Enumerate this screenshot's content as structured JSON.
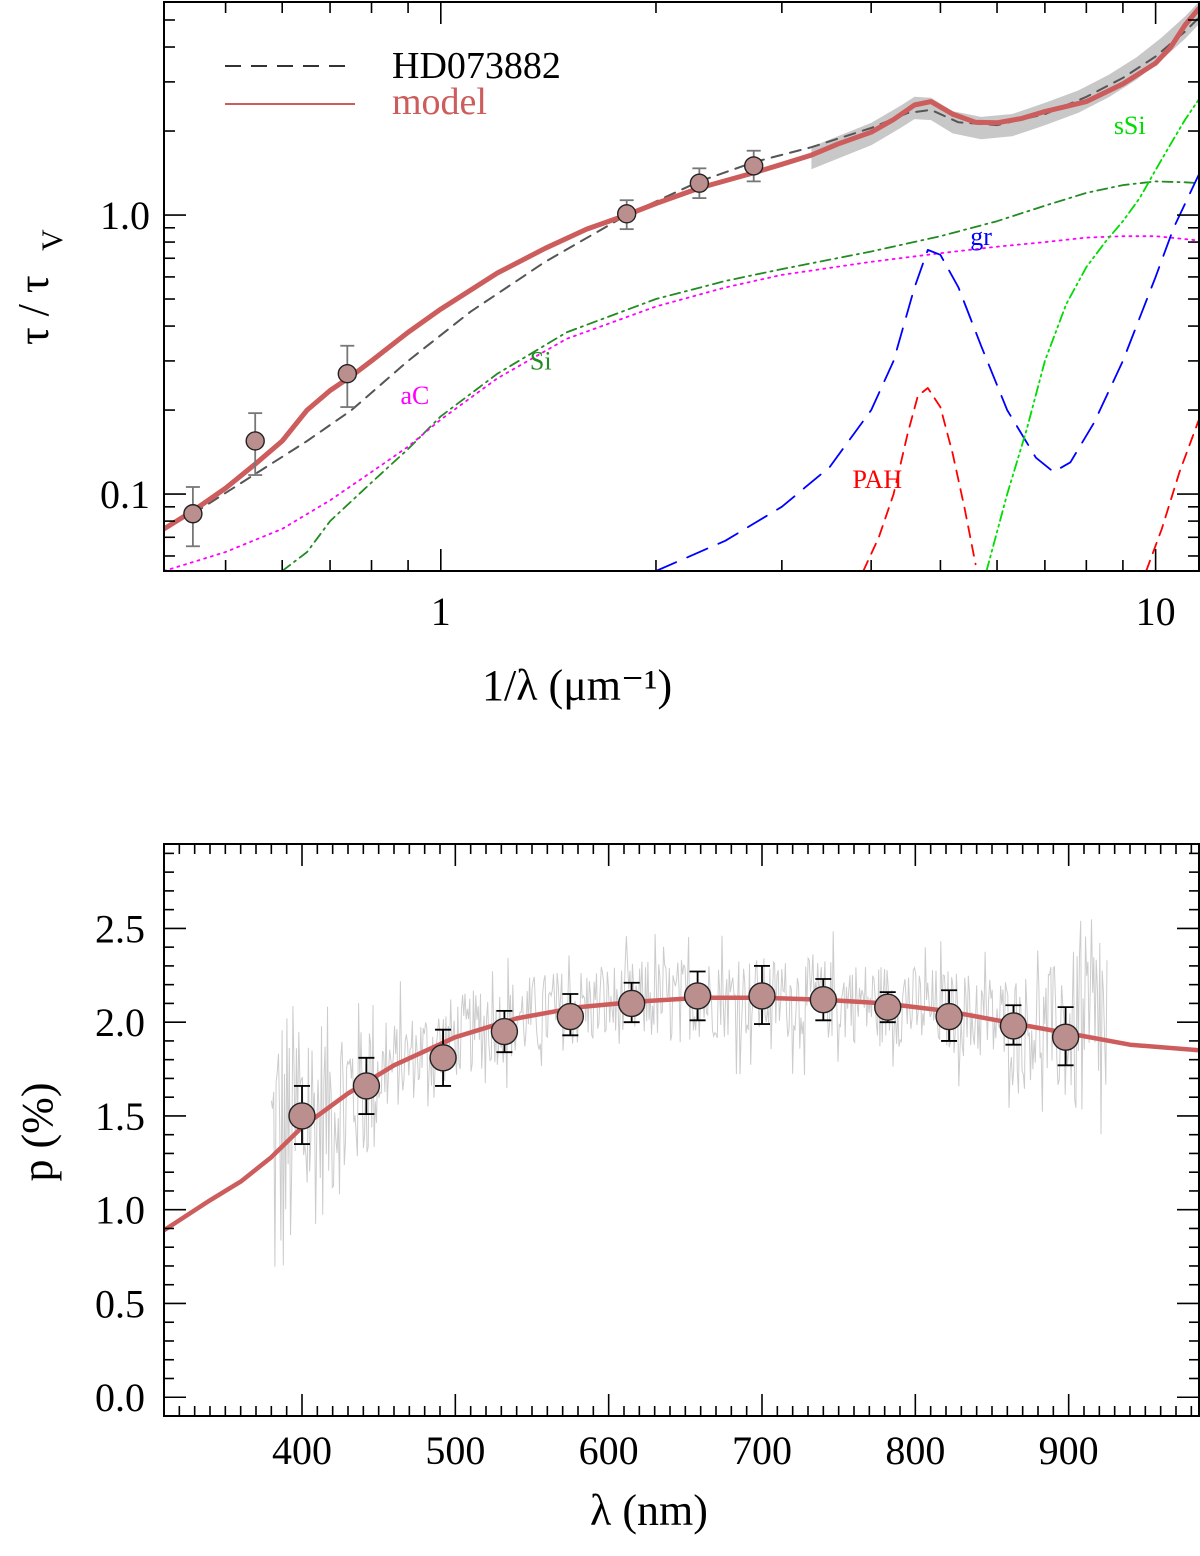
{
  "chart_data": [
    {
      "type": "line",
      "scale": {
        "x": "log",
        "y": "log"
      },
      "title": "",
      "xlabel": "1/λ (μm⁻¹)",
      "ylabel_main": "τ / τ",
      "ylabel_sub": "V",
      "xlim": [
        0.41,
        11.5
      ],
      "ylim": [
        0.053,
        5.8
      ],
      "x_ticks": [
        {
          "value": 1,
          "label": "1"
        },
        {
          "value": 10,
          "label": "10"
        }
      ],
      "y_ticks": [
        {
          "value": 0.1,
          "label": "0.1"
        },
        {
          "value": 1.0,
          "label": "1.0"
        }
      ],
      "legend": {
        "position": "top-left",
        "entries": [
          {
            "label": "HD073882",
            "style": "dashed",
            "color": "#000000",
            "line_color": "#333333"
          },
          {
            "label": "model",
            "style": "solid",
            "color": "#cd5c5c",
            "line_color": "#cd5c5c"
          }
        ]
      },
      "observed_band": {
        "name": "HD073882 UV data band",
        "color": "#c8c8c8",
        "x": [
          3.3,
          3.6,
          4.0,
          4.4,
          4.6,
          4.85,
          5.2,
          5.7,
          6.3,
          7.0,
          7.8,
          8.6,
          9.4,
          10.2,
          11.0,
          11.5
        ],
        "y": [
          1.6,
          1.75,
          1.95,
          2.25,
          2.42,
          2.4,
          2.15,
          2.05,
          2.1,
          2.3,
          2.55,
          2.9,
          3.35,
          3.95,
          4.7,
          5.3
        ],
        "halfwidth_dex": 0.04
      },
      "series": [
        {
          "name": "HD073882",
          "style": "dashed",
          "color": "#555555",
          "x": [
            0.45,
            0.55,
            0.65,
            0.75,
            0.9,
            1.1,
            1.4,
            1.82,
            2.3,
            2.75,
            3.3,
            4.0,
            4.5,
            4.85,
            5.3,
            6.0,
            7.0,
            8.0,
            9.0,
            10.0,
            11.0,
            11.5
          ],
          "y": [
            0.085,
            0.118,
            0.155,
            0.2,
            0.3,
            0.45,
            0.68,
            1.0,
            1.32,
            1.55,
            1.75,
            2.05,
            2.32,
            2.38,
            2.15,
            2.1,
            2.3,
            2.65,
            3.1,
            3.7,
            4.55,
            5.1
          ]
        },
        {
          "name": "model",
          "style": "solid",
          "color": "#cd5c5c",
          "x": [
            0.41,
            0.45,
            0.5,
            0.55,
            0.6,
            0.65,
            0.7,
            0.75,
            0.8,
            0.9,
            1.0,
            1.2,
            1.4,
            1.6,
            1.82,
            2.0,
            2.3,
            2.75,
            3.0,
            3.3,
            3.6,
            4.0,
            4.3,
            4.6,
            4.85,
            5.2,
            5.6,
            6.0,
            6.5,
            7.0,
            7.5,
            8.0,
            9.0,
            10.0,
            10.5,
            11.0,
            11.5
          ],
          "y": [
            0.075,
            0.087,
            0.105,
            0.128,
            0.155,
            0.2,
            0.235,
            0.265,
            0.3,
            0.38,
            0.46,
            0.62,
            0.76,
            0.89,
            1.0,
            1.1,
            1.25,
            1.42,
            1.52,
            1.64,
            1.8,
            1.98,
            2.2,
            2.48,
            2.55,
            2.3,
            2.15,
            2.14,
            2.22,
            2.35,
            2.45,
            2.55,
            2.95,
            3.5,
            4.0,
            4.8,
            5.5
          ]
        },
        {
          "name": "Si",
          "style": "dashdot",
          "color": "#228b22",
          "x": [
            0.6,
            0.65,
            0.7,
            0.8,
            0.9,
            1.0,
            1.2,
            1.5,
            2.0,
            2.5,
            3.0,
            4.0,
            5.0,
            6.0,
            7.0,
            8.0,
            9.0,
            10.0,
            11.0,
            11.5
          ],
          "y": [
            0.053,
            0.062,
            0.08,
            0.11,
            0.145,
            0.19,
            0.27,
            0.38,
            0.5,
            0.58,
            0.64,
            0.74,
            0.84,
            0.95,
            1.08,
            1.2,
            1.28,
            1.32,
            1.31,
            1.3
          ]
        },
        {
          "name": "aC",
          "style": "dotted",
          "color": "#ff00ff",
          "x": [
            0.41,
            0.5,
            0.6,
            0.7,
            0.8,
            0.9,
            1.0,
            1.2,
            1.5,
            2.0,
            2.5,
            3.0,
            4.0,
            5.0,
            6.0,
            7.0,
            8.0,
            9.0,
            10.0,
            11.0,
            11.5
          ],
          "y": [
            0.053,
            0.062,
            0.075,
            0.095,
            0.12,
            0.148,
            0.185,
            0.26,
            0.36,
            0.47,
            0.55,
            0.61,
            0.68,
            0.73,
            0.77,
            0.8,
            0.83,
            0.84,
            0.84,
            0.82,
            0.81
          ]
        },
        {
          "name": "gr",
          "style": "longdash",
          "color": "#0000ff",
          "x": [
            2.0,
            2.5,
            3.0,
            3.5,
            4.0,
            4.3,
            4.6,
            4.8,
            5.0,
            5.3,
            5.7,
            6.2,
            6.8,
            7.2,
            7.6,
            8.2,
            9.0,
            10.0,
            10.6,
            11.5
          ],
          "y": [
            0.053,
            0.068,
            0.09,
            0.125,
            0.2,
            0.3,
            0.55,
            0.75,
            0.72,
            0.55,
            0.34,
            0.2,
            0.135,
            0.12,
            0.13,
            0.18,
            0.3,
            0.6,
            0.9,
            1.4
          ]
        },
        {
          "name": "PAH",
          "style": "dashed",
          "color": "#ff0000",
          "x": [
            3.9,
            4.1,
            4.3,
            4.5,
            4.65,
            4.8,
            5.0,
            5.2,
            5.4,
            5.6,
            9.3,
            9.7,
            10.2,
            10.8,
            11.5
          ],
          "y": [
            0.053,
            0.07,
            0.1,
            0.165,
            0.225,
            0.24,
            0.205,
            0.14,
            0.09,
            0.056,
            null,
            0.053,
            0.075,
            0.12,
            0.185
          ]
        },
        {
          "name": "sSi",
          "style": "dashdotdot",
          "color": "#00dd00",
          "x": [
            5.8,
            6.2,
            6.6,
            7.0,
            7.5,
            8.0,
            8.5,
            9.0,
            9.5,
            10.0,
            10.5,
            11.0,
            11.5
          ],
          "y": [
            0.053,
            0.1,
            0.17,
            0.3,
            0.48,
            0.65,
            0.8,
            0.95,
            1.15,
            1.45,
            1.8,
            2.2,
            2.6
          ]
        }
      ],
      "points": [
        {
          "x": 0.45,
          "y": 0.085,
          "ylo": 0.065,
          "yhi": 0.106
        },
        {
          "x": 0.55,
          "y": 0.155,
          "ylo": 0.117,
          "yhi": 0.195
        },
        {
          "x": 0.74,
          "y": 0.27,
          "ylo": 0.205,
          "yhi": 0.34
        },
        {
          "x": 1.82,
          "y": 1.01,
          "ylo": 0.89,
          "yhi": 1.13
        },
        {
          "x": 2.3,
          "y": 1.3,
          "ylo": 1.15,
          "yhi": 1.47
        },
        {
          "x": 2.74,
          "y": 1.5,
          "ylo": 1.32,
          "yhi": 1.7
        }
      ],
      "annotations": [
        {
          "text": "Si",
          "x": 1.38,
          "y": 0.28,
          "color": "#228b22"
        },
        {
          "text": "aC",
          "x": 0.92,
          "y": 0.21,
          "color": "#ff00ff"
        },
        {
          "text": "gr",
          "x": 5.7,
          "y": 0.78,
          "color": "#0000ff"
        },
        {
          "text": "PAH",
          "x": 4.08,
          "y": 0.105,
          "color": "#ff0000"
        },
        {
          "text": "sSi",
          "x": 9.2,
          "y": 1.95,
          "color": "#00dd00"
        }
      ]
    },
    {
      "type": "line",
      "scale": {
        "x": "linear",
        "y": "linear"
      },
      "title": "",
      "xlabel": "λ   (nm)",
      "ylabel": "p (%)",
      "xlim": [
        310,
        985
      ],
      "ylim": [
        -0.1,
        2.95
      ],
      "x_ticks": [
        {
          "value": 400,
          "label": "400"
        },
        {
          "value": 500,
          "label": "500"
        },
        {
          "value": 600,
          "label": "600"
        },
        {
          "value": 700,
          "label": "700"
        },
        {
          "value": 800,
          "label": "800"
        },
        {
          "value": 900,
          "label": "900"
        }
      ],
      "x_minor_step": 10,
      "y_ticks": [
        {
          "value": 0.0,
          "label": "0.0"
        },
        {
          "value": 0.5,
          "label": "0.5"
        },
        {
          "value": 1.0,
          "label": "1.0"
        },
        {
          "value": 1.5,
          "label": "1.5"
        },
        {
          "value": 2.0,
          "label": "2.0"
        },
        {
          "value": 2.5,
          "label": "2.5"
        }
      ],
      "y_minor_step": 0.1,
      "spectrum": {
        "name": "observed spectrum (noisy)",
        "color": "#cccccc",
        "x_range": [
          380,
          925
        ],
        "samples": 700
      },
      "model": {
        "name": "model",
        "color": "#cd5c5c",
        "x": [
          310,
          340,
          360,
          380,
          400,
          430,
          460,
          500,
          540,
          580,
          620,
          660,
          700,
          740,
          780,
          820,
          860,
          900,
          940,
          985
        ],
        "y": [
          0.89,
          1.05,
          1.15,
          1.28,
          1.44,
          1.62,
          1.77,
          1.92,
          2.02,
          2.08,
          2.11,
          2.13,
          2.13,
          2.12,
          2.1,
          2.06,
          2.0,
          1.94,
          1.88,
          1.85
        ]
      },
      "points": [
        {
          "x": 400,
          "y": 1.5,
          "ylo": 1.35,
          "yhi": 1.66
        },
        {
          "x": 442,
          "y": 1.66,
          "ylo": 1.51,
          "yhi": 1.81
        },
        {
          "x": 492,
          "y": 1.81,
          "ylo": 1.66,
          "yhi": 1.96
        },
        {
          "x": 532,
          "y": 1.95,
          "ylo": 1.84,
          "yhi": 2.06
        },
        {
          "x": 575,
          "y": 2.03,
          "ylo": 1.93,
          "yhi": 2.15
        },
        {
          "x": 615,
          "y": 2.1,
          "ylo": 2.0,
          "yhi": 2.21
        },
        {
          "x": 658,
          "y": 2.14,
          "ylo": 2.01,
          "yhi": 2.27
        },
        {
          "x": 700,
          "y": 2.14,
          "ylo": 1.99,
          "yhi": 2.3
        },
        {
          "x": 740,
          "y": 2.12,
          "ylo": 2.01,
          "yhi": 2.23
        },
        {
          "x": 782,
          "y": 2.08,
          "ylo": 2.0,
          "yhi": 2.16
        },
        {
          "x": 822,
          "y": 2.03,
          "ylo": 1.9,
          "yhi": 2.17
        },
        {
          "x": 864,
          "y": 1.98,
          "ylo": 1.88,
          "yhi": 2.09
        },
        {
          "x": 898,
          "y": 1.92,
          "ylo": 1.77,
          "yhi": 2.08
        }
      ],
      "marker_color": "#bc8f8f"
    }
  ]
}
